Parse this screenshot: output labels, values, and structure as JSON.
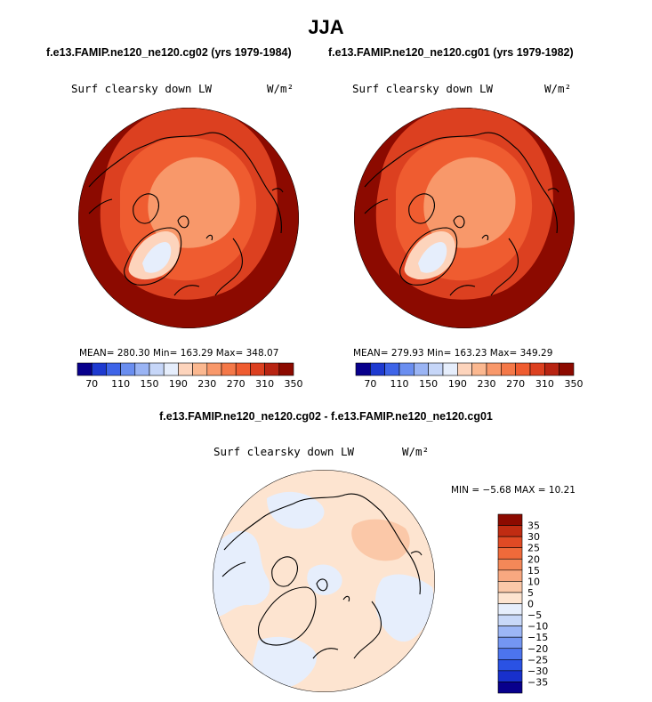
{
  "header": {
    "season": "JJA",
    "left_case": "f.e13.FAMIP.ne120_ne120.cg02 (yrs 1979-1984)",
    "right_case": "f.e13.FAMIP.ne120_ne120.cg01 (yrs 1979-1982)",
    "diff_title": "f.e13.FAMIP.ne120_ne120.cg02 - f.e13.FAMIP.ne120_ne120.cg01"
  },
  "panels": {
    "left": {
      "variable": "Surf clearsky down LW",
      "units": "W/m²",
      "stats": "MEAN= 280.30  Min= 163.29  Max= 348.07"
    },
    "right": {
      "variable": "Surf clearsky down LW",
      "units": "W/m²",
      "stats": "MEAN= 279.93  Min= 163.23  Max= 349.29"
    },
    "diff": {
      "variable": "Surf clearsky down LW",
      "units": "W/m²",
      "stats": "MIN = −5.68 MAX =  10.21"
    }
  },
  "colors": {
    "abs_scale": [
      "#08008c",
      "#1e3ad0",
      "#3e64e8",
      "#6a8ef0",
      "#9ab4f4",
      "#c6d6f8",
      "#e6eefc",
      "#fdd4bc",
      "#fbb890",
      "#f8986a",
      "#f47848",
      "#ef5c30",
      "#dc4020",
      "#b82412",
      "#8c0a00"
    ],
    "diff_scale": [
      "#08008c",
      "#1830cc",
      "#2a52e4",
      "#4c74ee",
      "#7496f2",
      "#9cb6f6",
      "#c8d8f8",
      "#e6eefc",
      "#fde4d0",
      "#fbc8a8",
      "#f8a880",
      "#f48858",
      "#ef6a3a",
      "#e04a24",
      "#c02c12",
      "#8c0a00"
    ],
    "land": "#000000",
    "background": "#ffffff"
  },
  "chart_data": [
    {
      "type": "heatmap",
      "title": "Surf clearsky down LW",
      "subtitle": "f.e13.FAMIP.ne120_ne120.cg02 (yrs 1979-1984)",
      "units": "W/m²",
      "projection": "north polar stereographic",
      "stats": {
        "mean": 280.3,
        "min": 163.29,
        "max": 348.07
      },
      "colorbar_ticks": [
        "70",
        "110",
        "150",
        "190",
        "230",
        "270",
        "310",
        "350"
      ],
      "regions": [
        {
          "name": "low-latitude ring",
          "value": 330
        },
        {
          "name": "mid-latitude",
          "value": 300
        },
        {
          "name": "subarctic",
          "value": 270
        },
        {
          "name": "arctic ocean",
          "value": 240
        },
        {
          "name": "greenland margin",
          "value": 200
        },
        {
          "name": "greenland interior",
          "value": 170
        }
      ]
    },
    {
      "type": "heatmap",
      "title": "Surf clearsky down LW",
      "subtitle": "f.e13.FAMIP.ne120_ne120.cg01 (yrs 1979-1982)",
      "units": "W/m²",
      "projection": "north polar stereographic",
      "stats": {
        "mean": 279.93,
        "min": 163.23,
        "max": 349.29
      },
      "colorbar_ticks": [
        "70",
        "110",
        "150",
        "190",
        "230",
        "270",
        "310",
        "350"
      ],
      "regions": [
        {
          "name": "low-latitude ring",
          "value": 330
        },
        {
          "name": "mid-latitude",
          "value": 300
        },
        {
          "name": "subarctic",
          "value": 270
        },
        {
          "name": "arctic ocean",
          "value": 240
        },
        {
          "name": "greenland margin",
          "value": 200
        },
        {
          "name": "greenland interior",
          "value": 170
        }
      ]
    },
    {
      "type": "heatmap",
      "title": "Surf clearsky down LW",
      "subtitle": "f.e13.FAMIP.ne120_ne120.cg02 - f.e13.FAMIP.ne120_ne120.cg01",
      "units": "W/m²",
      "projection": "north polar stereographic",
      "stats": {
        "min": -5.68,
        "max": 10.21
      },
      "colorbar_ticks": [
        "35",
        "30",
        "25",
        "20",
        "15",
        "10",
        "5",
        "0",
        "−5",
        "−10",
        "−15",
        "−20",
        "−25",
        "−30",
        "−35"
      ],
      "regions": [
        {
          "name": "background",
          "value": 2.5
        },
        {
          "name": "negative patches",
          "value": -2.5
        },
        {
          "name": "north pacific maximum",
          "value": 7.5
        }
      ]
    }
  ]
}
